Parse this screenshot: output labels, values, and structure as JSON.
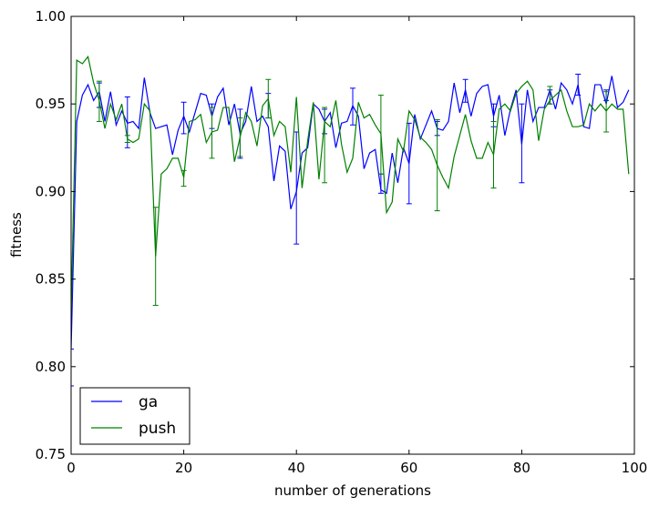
{
  "chart_data": {
    "type": "line",
    "title": "",
    "xlabel": "number of generations",
    "ylabel": "fitness",
    "xlim": [
      0,
      100
    ],
    "ylim": [
      0.75,
      1.0
    ],
    "xticks": [
      0,
      20,
      40,
      60,
      80,
      100
    ],
    "yticks": [
      0.75,
      0.8,
      0.85,
      0.9,
      0.95,
      1.0
    ],
    "xtick_labels": [
      "0",
      "20",
      "40",
      "60",
      "80",
      "100"
    ],
    "ytick_labels": [
      "0.75",
      "0.80",
      "0.85",
      "0.90",
      "0.95",
      "1.00"
    ],
    "grid": false,
    "legend_position": "lower-left",
    "series": [
      {
        "name": "ga",
        "color": "#0000ff",
        "x": [
          0,
          1,
          2,
          3,
          4,
          5,
          6,
          7,
          8,
          9,
          10,
          11,
          12,
          13,
          14,
          15,
          16,
          17,
          18,
          19,
          20,
          21,
          22,
          23,
          24,
          25,
          26,
          27,
          28,
          29,
          30,
          31,
          32,
          33,
          34,
          35,
          36,
          37,
          38,
          39,
          40,
          41,
          42,
          43,
          44,
          45,
          46,
          47,
          48,
          49,
          50,
          51,
          52,
          53,
          54,
          55,
          56,
          57,
          58,
          59,
          60,
          61,
          62,
          63,
          64,
          65,
          66,
          67,
          68,
          69,
          70,
          71,
          72,
          73,
          74,
          75,
          76,
          77,
          78,
          79,
          80,
          81,
          82,
          83,
          84,
          85,
          86,
          87,
          88,
          89,
          90,
          91,
          92,
          93,
          94,
          95,
          96,
          97,
          98,
          99
        ],
        "y": [
          0.81,
          0.94,
          0.955,
          0.961,
          0.952,
          0.957,
          0.94,
          0.957,
          0.938,
          0.946,
          0.939,
          0.94,
          0.936,
          0.965,
          0.945,
          0.936,
          0.937,
          0.938,
          0.921,
          0.935,
          0.943,
          0.934,
          0.945,
          0.956,
          0.955,
          0.943,
          0.954,
          0.959,
          0.938,
          0.95,
          0.933,
          0.94,
          0.96,
          0.94,
          0.943,
          0.937,
          0.906,
          0.926,
          0.923,
          0.89,
          0.9,
          0.922,
          0.925,
          0.95,
          0.947,
          0.94,
          0.945,
          0.925,
          0.939,
          0.94,
          0.949,
          0.943,
          0.913,
          0.922,
          0.924,
          0.901,
          0.899,
          0.922,
          0.905,
          0.925,
          0.916,
          0.944,
          0.93,
          0.938,
          0.946,
          0.936,
          0.935,
          0.94,
          0.962,
          0.945,
          0.958,
          0.943,
          0.956,
          0.96,
          0.961,
          0.943,
          0.955,
          0.932,
          0.947,
          0.958,
          0.927,
          0.958,
          0.94,
          0.948,
          0.948,
          0.958,
          0.947,
          0.962,
          0.958,
          0.95,
          0.961,
          0.937,
          0.936,
          0.961,
          0.961,
          0.95,
          0.966,
          0.948,
          0.951,
          0.958
        ],
        "error_bars": [
          {
            "x": 0,
            "low": 0.789,
            "high": 0.81
          },
          {
            "x": 5,
            "low": 0.948,
            "high": 0.962
          },
          {
            "x": 10,
            "low": 0.925,
            "high": 0.954
          },
          {
            "x": 20,
            "low": 0.933,
            "high": 0.951
          },
          {
            "x": 25,
            "low": 0.936,
            "high": 0.95
          },
          {
            "x": 30,
            "low": 0.919,
            "high": 0.947
          },
          {
            "x": 35,
            "low": 0.942,
            "high": 0.956
          },
          {
            "x": 40,
            "low": 0.87,
            "high": 0.934
          },
          {
            "x": 45,
            "low": 0.933,
            "high": 0.947
          },
          {
            "x": 50,
            "low": 0.938,
            "high": 0.959
          },
          {
            "x": 55,
            "low": 0.899,
            "high": 0.91
          },
          {
            "x": 60,
            "low": 0.893,
            "high": 0.939
          },
          {
            "x": 65,
            "low": 0.932,
            "high": 0.94
          },
          {
            "x": 70,
            "low": 0.951,
            "high": 0.964
          },
          {
            "x": 75,
            "low": 0.937,
            "high": 0.95
          },
          {
            "x": 80,
            "low": 0.905,
            "high": 0.95
          },
          {
            "x": 85,
            "low": 0.95,
            "high": 0.958
          },
          {
            "x": 90,
            "low": 0.955,
            "high": 0.967
          },
          {
            "x": 95,
            "low": 0.952,
            "high": 0.958
          }
        ]
      },
      {
        "name": "push",
        "color": "#008000",
        "x": [
          0,
          1,
          2,
          3,
          4,
          5,
          6,
          7,
          8,
          9,
          10,
          11,
          12,
          13,
          14,
          15,
          16,
          17,
          18,
          19,
          20,
          21,
          22,
          23,
          24,
          25,
          26,
          27,
          28,
          29,
          30,
          31,
          32,
          33,
          34,
          35,
          36,
          37,
          38,
          39,
          40,
          41,
          42,
          43,
          44,
          45,
          46,
          47,
          48,
          49,
          50,
          51,
          52,
          53,
          54,
          55,
          56,
          57,
          58,
          59,
          60,
          61,
          62,
          63,
          64,
          65,
          66,
          67,
          68,
          69,
          70,
          71,
          72,
          73,
          74,
          75,
          76,
          77,
          78,
          79,
          80,
          81,
          82,
          83,
          84,
          85,
          86,
          87,
          88,
          89,
          90,
          91,
          92,
          93,
          94,
          95,
          96,
          97,
          98,
          99
        ],
        "y": [
          0.83,
          0.975,
          0.973,
          0.977,
          0.962,
          0.952,
          0.936,
          0.95,
          0.941,
          0.95,
          0.93,
          0.928,
          0.93,
          0.95,
          0.946,
          0.863,
          0.91,
          0.913,
          0.919,
          0.919,
          0.908,
          0.94,
          0.941,
          0.944,
          0.928,
          0.934,
          0.935,
          0.948,
          0.948,
          0.917,
          0.931,
          0.945,
          0.94,
          0.926,
          0.949,
          0.953,
          0.932,
          0.94,
          0.937,
          0.911,
          0.954,
          0.902,
          0.929,
          0.951,
          0.907,
          0.94,
          0.937,
          0.952,
          0.927,
          0.911,
          0.919,
          0.951,
          0.942,
          0.944,
          0.938,
          0.933,
          0.888,
          0.894,
          0.93,
          0.923,
          0.946,
          0.941,
          0.931,
          0.928,
          0.924,
          0.915,
          0.908,
          0.902,
          0.92,
          0.932,
          0.944,
          0.929,
          0.919,
          0.919,
          0.928,
          0.921,
          0.947,
          0.95,
          0.946,
          0.956,
          0.96,
          0.963,
          0.958,
          0.929,
          0.947,
          0.952,
          0.955,
          0.958,
          0.946,
          0.937,
          0.937,
          0.938,
          0.95,
          0.946,
          0.95,
          0.946,
          0.95,
          0.947,
          0.947,
          0.91
        ],
        "error_bars": [
          {
            "x": 5,
            "low": 0.94,
            "high": 0.963
          },
          {
            "x": 10,
            "low": 0.928,
            "high": 0.932
          },
          {
            "x": 15,
            "low": 0.835,
            "high": 0.891
          },
          {
            "x": 20,
            "low": 0.903,
            "high": 0.912
          },
          {
            "x": 25,
            "low": 0.919,
            "high": 0.948
          },
          {
            "x": 30,
            "low": 0.92,
            "high": 0.942
          },
          {
            "x": 35,
            "low": 0.942,
            "high": 0.964
          },
          {
            "x": 45,
            "low": 0.905,
            "high": 0.948
          },
          {
            "x": 55,
            "low": 0.91,
            "high": 0.955
          },
          {
            "x": 65,
            "low": 0.889,
            "high": 0.941
          },
          {
            "x": 75,
            "low": 0.902,
            "high": 0.94
          },
          {
            "x": 85,
            "low": 0.95,
            "high": 0.96
          },
          {
            "x": 95,
            "low": 0.934,
            "high": 0.957
          }
        ]
      }
    ]
  }
}
